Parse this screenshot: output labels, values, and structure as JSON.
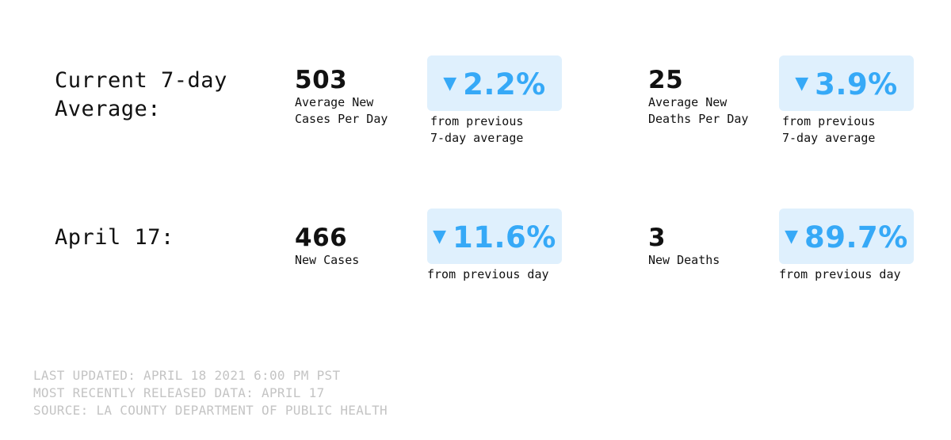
{
  "rows": [
    {
      "label": "Current 7-day\nAverage:",
      "cases": {
        "value": "503",
        "desc": "Average New\nCases Per Day",
        "change_arrow": "▼",
        "change": "2.2%",
        "change_note": "from previous\n7-day average"
      },
      "deaths": {
        "value": "25",
        "desc": "Average New\nDeaths Per Day",
        "change_arrow": "▼",
        "change": "3.9%",
        "change_note": "from previous\n7-day average"
      }
    },
    {
      "label": "April 17:",
      "cases": {
        "value": "466",
        "desc": "New Cases",
        "change_arrow": "▼",
        "change": "11.6%",
        "change_note": "from previous day"
      },
      "deaths": {
        "value": "3",
        "desc": "New Deaths",
        "change_arrow": "▼",
        "change": "89.7%",
        "change_note": "from previous day"
      }
    }
  ],
  "footer": {
    "last_updated": "LAST UPDATED: APRIL 18 2021 6:00 PM PST",
    "released": "MOST RECENTLY RELEASED DATA: APRIL 17",
    "source": "SOURCE: LA COUNTY DEPARTMENT OF PUBLIC HEALTH"
  },
  "colors": {
    "accent": "#36a9f7",
    "accent_bg": "#dff0fd",
    "footer_text": "#c4c4c4"
  },
  "icons": {
    "change_down": "down-triangle-icon"
  }
}
